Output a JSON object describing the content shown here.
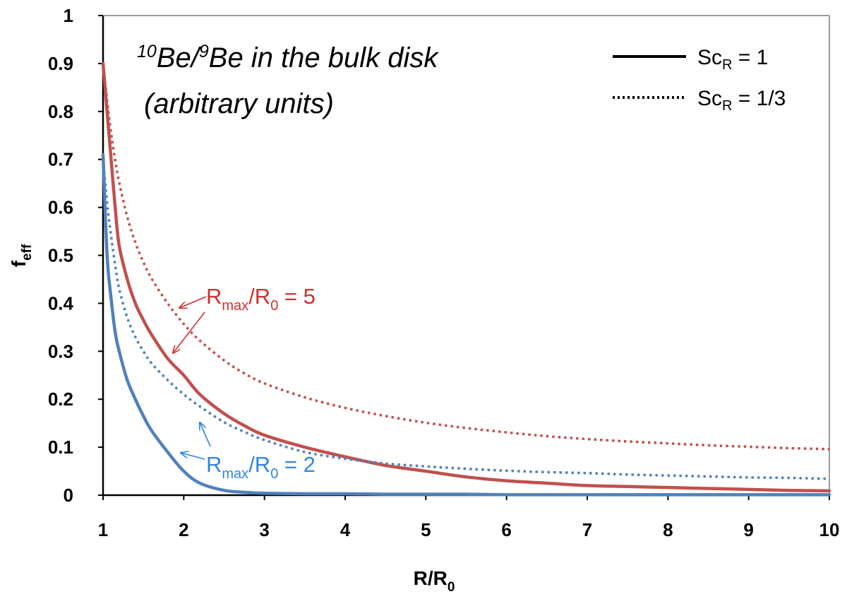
{
  "chart_data": {
    "type": "line",
    "title": {
      "line1_sup1": "10",
      "line1_mid": "Be/",
      "line1_sup2": "9",
      "line1_rest": "Be in the bulk disk",
      "line2": "(arbitrary units)"
    },
    "xlabel": {
      "main": "R/R",
      "sub": "0"
    },
    "ylabel": {
      "main": "f",
      "sub": "eff"
    },
    "xlim": [
      1,
      10
    ],
    "ylim": [
      0,
      1
    ],
    "x_ticks": [
      "1",
      "2",
      "3",
      "4",
      "5",
      "6",
      "7",
      "8",
      "9",
      "10"
    ],
    "y_ticks": [
      "0",
      "0.1",
      "0.2",
      "0.3",
      "0.4",
      "0.5",
      "0.6",
      "0.7",
      "0.8",
      "0.9",
      "1"
    ],
    "grid": false,
    "legend": {
      "position": "top-right",
      "entries": [
        {
          "style": "solid",
          "label_main": "Sc",
          "label_sub": "R",
          "label_rest": " = 1"
        },
        {
          "style": "dotted",
          "label_main": "Sc",
          "label_sub": "R",
          "label_rest": " = 1/3"
        }
      ]
    },
    "colors": {
      "red": "#c0504d",
      "blue": "#4f81bd",
      "red_text": "#d32f2f",
      "blue_text": "#2e86de"
    },
    "x": [
      1.0,
      1.05,
      1.1,
      1.15,
      1.2,
      1.3,
      1.4,
      1.5,
      1.6,
      1.8,
      2.0,
      2.2,
      2.5,
      2.75,
      3.0,
      3.5,
      4.0,
      4.5,
      5.0,
      5.5,
      6.0,
      6.5,
      7.0,
      7.5,
      8.0,
      8.5,
      9.0,
      9.5,
      10.0
    ],
    "series": [
      {
        "group": "Rmax5",
        "style": "dotted",
        "color": "red",
        "values": [
          0.9,
          0.823,
          0.755,
          0.699,
          0.652,
          0.58,
          0.527,
          0.486,
          0.452,
          0.4,
          0.357,
          0.322,
          0.281,
          0.254,
          0.233,
          0.204,
          0.182,
          0.165,
          0.151,
          0.14,
          0.131,
          0.123,
          0.117,
          0.112,
          0.108,
          0.104,
          0.101,
          0.098,
          0.096
        ]
      },
      {
        "group": "Rmax5",
        "style": "solid",
        "color": "red",
        "values": [
          0.9,
          0.8,
          0.7,
          0.6,
          0.52,
          0.45,
          0.4,
          0.365,
          0.335,
          0.285,
          0.25,
          0.21,
          0.17,
          0.145,
          0.125,
          0.1,
          0.08,
          0.062,
          0.05,
          0.038,
          0.03,
          0.025,
          0.02,
          0.018,
          0.016,
          0.014,
          0.012,
          0.01,
          0.009
        ]
      },
      {
        "group": "Rmax2",
        "style": "dotted",
        "color": "blue",
        "values": [
          0.7,
          0.61,
          0.54,
          0.48,
          0.43,
          0.37,
          0.33,
          0.3,
          0.275,
          0.24,
          0.21,
          0.185,
          0.152,
          0.132,
          0.115,
          0.09,
          0.076,
          0.066,
          0.06,
          0.055,
          0.051,
          0.048,
          0.046,
          0.043,
          0.041,
          0.039,
          0.037,
          0.036,
          0.034
        ]
      },
      {
        "group": "Rmax2",
        "style": "solid",
        "color": "blue",
        "values": [
          0.71,
          0.5,
          0.41,
          0.34,
          0.3,
          0.24,
          0.2,
          0.165,
          0.135,
          0.09,
          0.05,
          0.025,
          0.01,
          0.006,
          0.004,
          0.003,
          0.003,
          0.002,
          0.002,
          0.002,
          0.001,
          0.001,
          0.001,
          0.001,
          0.001,
          0.001,
          0.001,
          0.001,
          0.001
        ]
      }
    ],
    "annotations": [
      {
        "main": "R",
        "sub1": "max",
        "mid": "/R",
        "sub2": "0",
        "rest": " = 5",
        "color": "red_text"
      },
      {
        "main": "R",
        "sub1": "max",
        "mid": "/R",
        "sub2": "0",
        "rest": " = 2",
        "color": "blue_text"
      }
    ]
  }
}
